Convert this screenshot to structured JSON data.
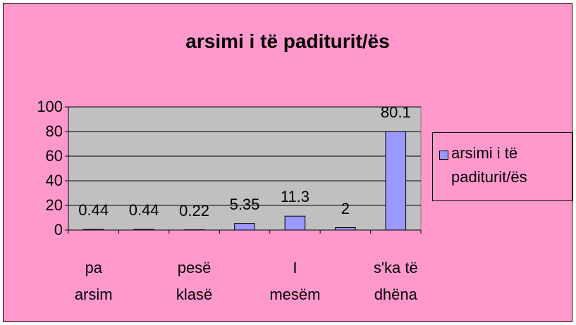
{
  "chart_data": {
    "type": "bar",
    "title": "arsimi i të paditurit/ës",
    "categories": [
      "pa arsim",
      null,
      "pesë klasë",
      null,
      "I mesëm",
      null,
      "s'ka të dhëna"
    ],
    "series": [
      {
        "name": "arsimi i të paditurit/ës",
        "color": "#9999ff",
        "values": [
          0.44,
          0.44,
          0.22,
          5.35,
          11.3,
          2,
          80.1
        ]
      }
    ],
    "ylim": [
      0,
      100
    ],
    "yticks": [
      0,
      20,
      40,
      60,
      80,
      100
    ],
    "grid": true,
    "legend": "right"
  }
}
